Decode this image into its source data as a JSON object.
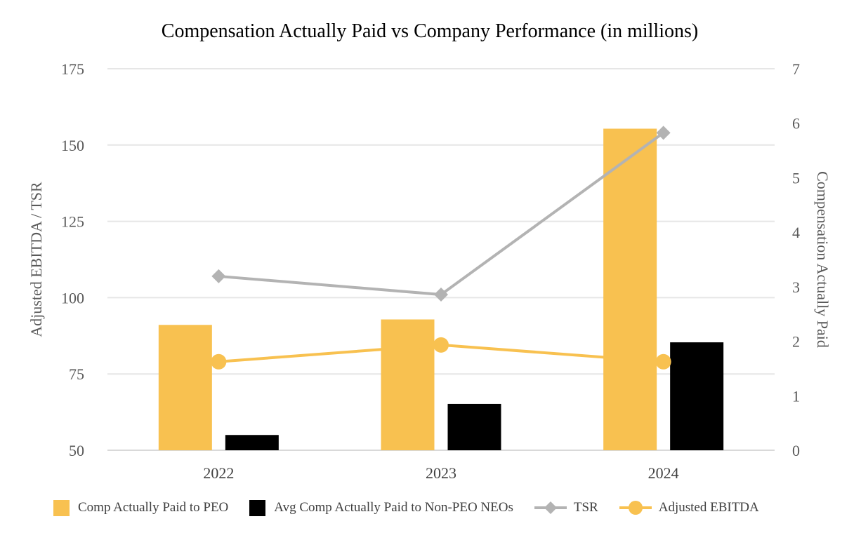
{
  "chart_data": {
    "type": "bar",
    "title": "Compensation Actually Paid vs Company Performance (in millions)",
    "categories": [
      "2022",
      "2023",
      "2024"
    ],
    "y_left": {
      "label": "Adjusted EBITDA / TSR",
      "min": 50,
      "max": 175,
      "ticks": [
        50,
        75,
        100,
        125,
        150,
        175
      ]
    },
    "y_right": {
      "label": "Compensation Actually Paid",
      "min": 0,
      "max": 7,
      "ticks": [
        0,
        1,
        2,
        3,
        4,
        5,
        6,
        7
      ]
    },
    "grid": true,
    "legend_position": "bottom",
    "series": [
      {
        "name": "Comp Actually Paid to PEO",
        "kind": "bar",
        "axis": "right",
        "color": "#F8C150",
        "values": [
          2.3,
          2.4,
          5.9
        ]
      },
      {
        "name": "Avg Comp Actually Paid to Non-PEO NEOs",
        "kind": "bar",
        "axis": "right",
        "color": "#000000",
        "values": [
          0.28,
          0.85,
          1.98
        ]
      },
      {
        "name": "TSR",
        "kind": "line",
        "marker": "diamond",
        "axis": "left",
        "color": "#B3B3B3",
        "values": [
          107,
          101,
          154
        ]
      },
      {
        "name": "Adjusted EBITDA",
        "kind": "line",
        "marker": "circle",
        "axis": "left",
        "color": "#F8C150",
        "values": [
          79,
          84.5,
          79
        ]
      }
    ]
  }
}
